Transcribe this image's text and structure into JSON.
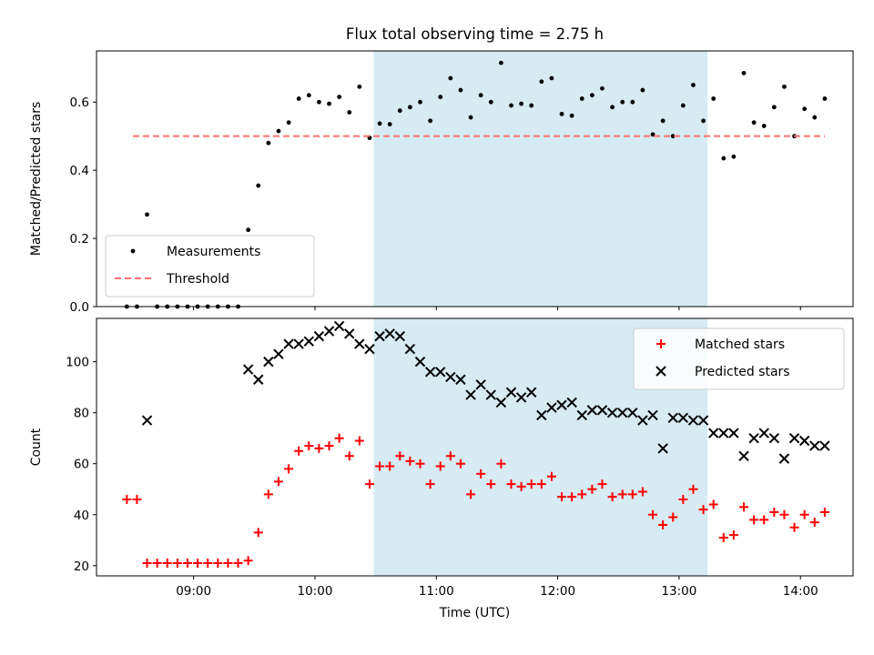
{
  "chart_data": [
    {
      "type": "scatter",
      "title": "Flux total observing time = 2.75 h",
      "xlabel": "",
      "ylabel": "Matched/Predicted stars",
      "xlim": [
        "08:12",
        "14:26"
      ],
      "ylim": [
        0,
        0.75
      ],
      "yticks": [
        0,
        0.2,
        0.4,
        0.6
      ],
      "ytick_labels": [
        "0.0",
        "0.2",
        "0.4",
        "0.6"
      ],
      "xticks": [
        "09:00",
        "10:00",
        "11:00",
        "12:00",
        "13:00",
        "14:00"
      ],
      "xtick_labels": [],
      "grid": false,
      "legend_position": "lower-left",
      "shaded_region": {
        "from": "10:29",
        "to": "13:14",
        "color": "#add8e6"
      },
      "series": [
        {
          "name": "Measurements",
          "style": "dots",
          "color": "#000000",
          "points": [
            [
              "08:27",
              0.0
            ],
            [
              "08:32",
              0.0
            ],
            [
              "08:37",
              0.27
            ],
            [
              "08:42",
              0.0
            ],
            [
              "08:47",
              0.0
            ],
            [
              "08:52",
              0.0
            ],
            [
              "08:57",
              0.0
            ],
            [
              "09:02",
              0.0
            ],
            [
              "09:07",
              0.0
            ],
            [
              "09:12",
              0.0
            ],
            [
              "09:17",
              0.0
            ],
            [
              "09:22",
              0.0
            ],
            [
              "09:27",
              0.225
            ],
            [
              "09:32",
              0.355
            ],
            [
              "09:37",
              0.48
            ],
            [
              "09:42",
              0.515
            ],
            [
              "09:47",
              0.54
            ],
            [
              "09:52",
              0.61
            ],
            [
              "09:57",
              0.62
            ],
            [
              "10:02",
              0.6
            ],
            [
              "10:07",
              0.595
            ],
            [
              "10:12",
              0.615
            ],
            [
              "10:17",
              0.57
            ],
            [
              "10:22",
              0.645
            ],
            [
              "10:27",
              0.495
            ],
            [
              "10:32",
              0.537
            ],
            [
              "10:37",
              0.535
            ],
            [
              "10:42",
              0.575
            ],
            [
              "10:47",
              0.585
            ],
            [
              "10:52",
              0.6
            ],
            [
              "10:57",
              0.545
            ],
            [
              "11:02",
              0.615
            ],
            [
              "11:07",
              0.67
            ],
            [
              "11:12",
              0.635
            ],
            [
              "11:17",
              0.555
            ],
            [
              "11:22",
              0.62
            ],
            [
              "11:27",
              0.6
            ],
            [
              "11:32",
              0.715
            ],
            [
              "11:37",
              0.59
            ],
            [
              "11:42",
              0.595
            ],
            [
              "11:47",
              0.59
            ],
            [
              "11:52",
              0.66
            ],
            [
              "11:57",
              0.67
            ],
            [
              "12:02",
              0.565
            ],
            [
              "12:07",
              0.56
            ],
            [
              "12:12",
              0.61
            ],
            [
              "12:17",
              0.62
            ],
            [
              "12:22",
              0.64
            ],
            [
              "12:27",
              0.585
            ],
            [
              "12:32",
              0.6
            ],
            [
              "12:37",
              0.6
            ],
            [
              "12:42",
              0.635
            ],
            [
              "12:47",
              0.505
            ],
            [
              "12:52",
              0.545
            ],
            [
              "12:57",
              0.5
            ],
            [
              "13:02",
              0.59
            ],
            [
              "13:07",
              0.65
            ],
            [
              "13:12",
              0.545
            ],
            [
              "13:17",
              0.61
            ],
            [
              "13:22",
              0.435
            ],
            [
              "13:27",
              0.44
            ],
            [
              "13:32",
              0.685
            ],
            [
              "13:37",
              0.54
            ],
            [
              "13:42",
              0.53
            ],
            [
              "13:47",
              0.585
            ],
            [
              "13:52",
              0.645
            ],
            [
              "13:57",
              0.5
            ],
            [
              "14:02",
              0.58
            ],
            [
              "14:07",
              0.555
            ],
            [
              "14:12",
              0.61
            ]
          ]
        },
        {
          "name": "Threshold",
          "style": "dashed-line",
          "color": "#ff6f6f",
          "points": [
            [
              "08:30",
              0.5
            ],
            [
              "14:12",
              0.5
            ]
          ]
        }
      ]
    },
    {
      "type": "scatter",
      "title": "",
      "xlabel": "Time (UTC)",
      "ylabel": "Count",
      "xlim": [
        "08:12",
        "14:26"
      ],
      "ylim": [
        16,
        117
      ],
      "yticks": [
        20,
        40,
        60,
        80,
        100
      ],
      "ytick_labels": [
        "20",
        "40",
        "60",
        "80",
        "100"
      ],
      "xticks": [
        "09:00",
        "10:00",
        "11:00",
        "12:00",
        "13:00",
        "14:00"
      ],
      "xtick_labels": [
        "09:00",
        "10:00",
        "11:00",
        "12:00",
        "13:00",
        "14:00"
      ],
      "grid": false,
      "legend_position": "upper-right",
      "shaded_region": {
        "from": "10:29",
        "to": "13:14",
        "color": "#add8e6"
      },
      "series": [
        {
          "name": "Matched stars",
          "style": "plus",
          "color": "#ff0000",
          "points": [
            [
              "08:27",
              46
            ],
            [
              "08:32",
              46
            ],
            [
              "08:37",
              21
            ],
            [
              "08:42",
              21
            ],
            [
              "08:47",
              21
            ],
            [
              "08:52",
              21
            ],
            [
              "08:57",
              21
            ],
            [
              "09:02",
              21
            ],
            [
              "09:07",
              21
            ],
            [
              "09:12",
              21
            ],
            [
              "09:17",
              21
            ],
            [
              "09:22",
              21
            ],
            [
              "09:27",
              22
            ],
            [
              "09:32",
              33
            ],
            [
              "09:37",
              48
            ],
            [
              "09:42",
              53
            ],
            [
              "09:47",
              58
            ],
            [
              "09:52",
              65
            ],
            [
              "09:57",
              67
            ],
            [
              "10:02",
              66
            ],
            [
              "10:07",
              67
            ],
            [
              "10:12",
              70
            ],
            [
              "10:17",
              63
            ],
            [
              "10:22",
              69
            ],
            [
              "10:27",
              52
            ],
            [
              "10:32",
              59
            ],
            [
              "10:37",
              59
            ],
            [
              "10:42",
              63
            ],
            [
              "10:47",
              61
            ],
            [
              "10:52",
              60
            ],
            [
              "10:57",
              52
            ],
            [
              "11:02",
              59
            ],
            [
              "11:07",
              63
            ],
            [
              "11:12",
              60
            ],
            [
              "11:17",
              48
            ],
            [
              "11:22",
              56
            ],
            [
              "11:27",
              52
            ],
            [
              "11:32",
              60
            ],
            [
              "11:37",
              52
            ],
            [
              "11:42",
              51
            ],
            [
              "11:47",
              52
            ],
            [
              "11:52",
              52
            ],
            [
              "11:57",
              55
            ],
            [
              "12:02",
              47
            ],
            [
              "12:07",
              47
            ],
            [
              "12:12",
              48
            ],
            [
              "12:17",
              50
            ],
            [
              "12:22",
              52
            ],
            [
              "12:27",
              47
            ],
            [
              "12:32",
              48
            ],
            [
              "12:37",
              48
            ],
            [
              "12:42",
              49
            ],
            [
              "12:47",
              40
            ],
            [
              "12:52",
              36
            ],
            [
              "12:57",
              39
            ],
            [
              "13:02",
              46
            ],
            [
              "13:07",
              50
            ],
            [
              "13:12",
              42
            ],
            [
              "13:17",
              44
            ],
            [
              "13:22",
              31
            ],
            [
              "13:27",
              32
            ],
            [
              "13:32",
              43
            ],
            [
              "13:37",
              38
            ],
            [
              "13:42",
              38
            ],
            [
              "13:47",
              41
            ],
            [
              "13:52",
              40
            ],
            [
              "13:57",
              35
            ],
            [
              "14:02",
              40
            ],
            [
              "14:07",
              37
            ],
            [
              "14:12",
              41
            ]
          ]
        },
        {
          "name": "Predicted stars",
          "style": "cross",
          "color": "#000000",
          "points": [
            [
              "08:37",
              77
            ],
            [
              "09:27",
              97
            ],
            [
              "09:32",
              93
            ],
            [
              "09:37",
              100
            ],
            [
              "09:42",
              103
            ],
            [
              "09:47",
              107
            ],
            [
              "09:52",
              107
            ],
            [
              "09:57",
              108
            ],
            [
              "10:02",
              110
            ],
            [
              "10:07",
              112
            ],
            [
              "10:12",
              114
            ],
            [
              "10:17",
              111
            ],
            [
              "10:22",
              107
            ],
            [
              "10:27",
              105
            ],
            [
              "10:32",
              110
            ],
            [
              "10:37",
              111
            ],
            [
              "10:42",
              110
            ],
            [
              "10:47",
              105
            ],
            [
              "10:52",
              100
            ],
            [
              "10:57",
              96
            ],
            [
              "11:02",
              96
            ],
            [
              "11:07",
              94
            ],
            [
              "11:12",
              93
            ],
            [
              "11:17",
              87
            ],
            [
              "11:22",
              91
            ],
            [
              "11:27",
              87
            ],
            [
              "11:32",
              84
            ],
            [
              "11:37",
              88
            ],
            [
              "11:42",
              86
            ],
            [
              "11:47",
              88
            ],
            [
              "11:52",
              79
            ],
            [
              "11:57",
              82
            ],
            [
              "12:02",
              83
            ],
            [
              "12:07",
              84
            ],
            [
              "12:12",
              79
            ],
            [
              "12:17",
              81
            ],
            [
              "12:22",
              81
            ],
            [
              "12:27",
              80
            ],
            [
              "12:32",
              80
            ],
            [
              "12:37",
              80
            ],
            [
              "12:42",
              77
            ],
            [
              "12:47",
              79
            ],
            [
              "12:52",
              66
            ],
            [
              "12:57",
              78
            ],
            [
              "13:02",
              78
            ],
            [
              "13:07",
              77
            ],
            [
              "13:12",
              77
            ],
            [
              "13:17",
              72
            ],
            [
              "13:22",
              72
            ],
            [
              "13:27",
              72
            ],
            [
              "13:32",
              63
            ],
            [
              "13:37",
              70
            ],
            [
              "13:42",
              72
            ],
            [
              "13:47",
              70
            ],
            [
              "13:52",
              62
            ],
            [
              "13:57",
              70
            ],
            [
              "14:02",
              69
            ],
            [
              "14:07",
              67
            ],
            [
              "14:12",
              67
            ]
          ]
        }
      ]
    }
  ]
}
